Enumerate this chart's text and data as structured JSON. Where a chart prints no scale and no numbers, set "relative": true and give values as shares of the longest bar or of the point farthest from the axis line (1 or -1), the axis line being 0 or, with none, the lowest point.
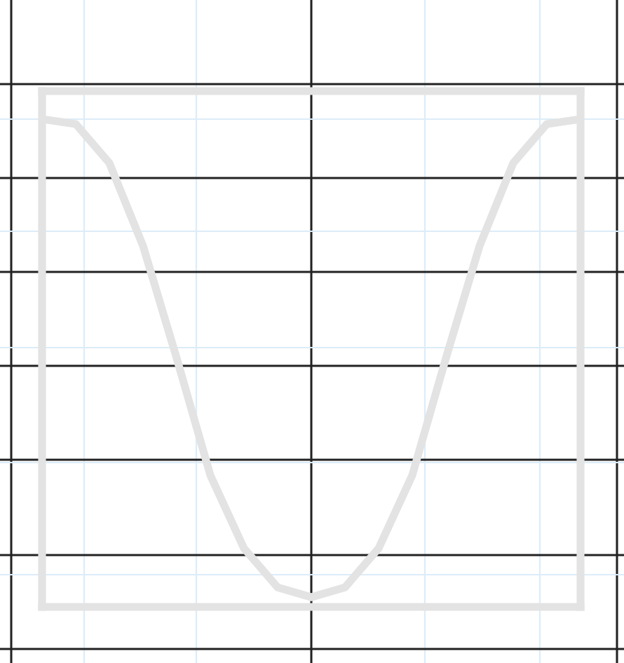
{
  "chart_data": {
    "type": "line",
    "relative": true,
    "grid": true,
    "legend": false,
    "marker": "none",
    "line_style": "solid",
    "categories": [
      null,
      null,
      null,
      null,
      null,
      null,
      null,
      null,
      null,
      null,
      null,
      null,
      null,
      null,
      null,
      null,
      null
    ],
    "series": [
      {
        "color": "#e3e3e3",
        "values": [
          1,
          0.99,
          0.91,
          0.74,
          0.51,
          0.27,
          0.12,
          0.04,
          0.02,
          0.04,
          0.12,
          0.27,
          0.51,
          0.74,
          0.91,
          0.99,
          1
        ]
      }
    ]
  }
}
